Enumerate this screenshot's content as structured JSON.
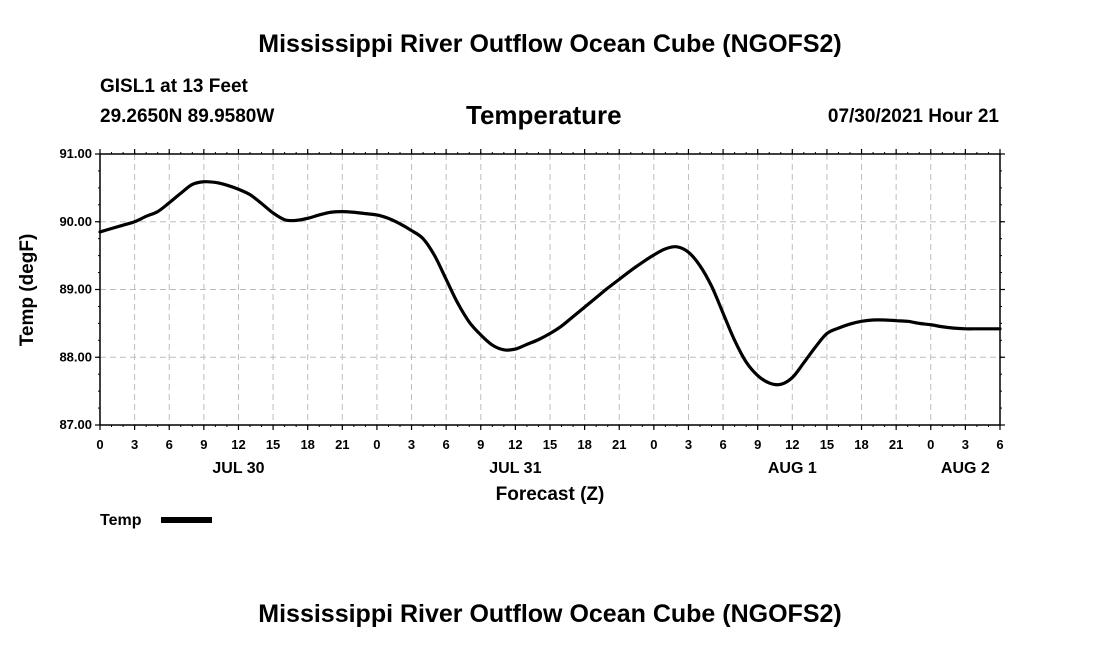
{
  "header": {
    "title": "Mississippi River Outflow Ocean Cube (NGOFS2)",
    "station": "GISL1 at 13 Feet",
    "coords": "29.2650N  89.9580W",
    "datetime": "07/30/2021 Hour 21"
  },
  "footer": {
    "title": "Mississippi River Outflow Ocean Cube (NGOFS2)"
  },
  "chart_data": {
    "type": "line",
    "title": "Temperature",
    "xlabel": "Forecast (Z)",
    "ylabel": "Temp (degF)",
    "ylim": [
      87.0,
      91.0
    ],
    "xlim_hours": [
      0,
      78
    ],
    "grid": true,
    "yticks": [
      "87.00",
      "88.00",
      "89.00",
      "90.00",
      "91.00"
    ],
    "ytick_values": [
      87,
      88,
      89,
      90,
      91
    ],
    "xticks": [
      "0",
      "3",
      "6",
      "9",
      "12",
      "15",
      "18",
      "21",
      "0",
      "3",
      "6",
      "9",
      "12",
      "15",
      "18",
      "21",
      "0",
      "3",
      "6",
      "9",
      "12",
      "15",
      "18",
      "21",
      "0",
      "3",
      "6"
    ],
    "day_labels": [
      {
        "label": "JUL 30",
        "hour": 12
      },
      {
        "label": "JUL 31",
        "hour": 36
      },
      {
        "label": "AUG 1",
        "hour": 60
      },
      {
        "label": "AUG 2",
        "hour": 75
      }
    ],
    "legend": [
      {
        "name": "Temp",
        "color": "#000000"
      }
    ],
    "series": [
      {
        "name": "Temp",
        "x_hours": [
          0,
          1,
          2,
          3,
          4,
          5,
          6,
          7,
          8,
          9,
          10,
          11,
          12,
          13,
          14,
          15,
          16,
          17,
          18,
          19,
          20,
          21,
          22,
          23,
          24,
          25,
          26,
          27,
          28,
          29,
          30,
          31,
          32,
          33,
          34,
          35,
          36,
          37,
          38,
          39,
          40,
          41,
          42,
          43,
          44,
          45,
          46,
          47,
          48,
          49,
          50,
          51,
          52,
          53,
          54,
          55,
          56,
          57,
          58,
          59,
          60,
          61,
          62,
          63,
          64,
          65,
          66,
          67,
          68,
          69,
          70,
          71,
          72,
          73,
          74,
          75,
          76,
          77,
          78
        ],
        "values": [
          89.85,
          89.9,
          89.95,
          90.0,
          90.08,
          90.15,
          90.28,
          90.42,
          90.55,
          90.59,
          90.58,
          90.54,
          90.48,
          90.4,
          90.27,
          90.13,
          90.03,
          90.02,
          90.05,
          90.1,
          90.14,
          90.15,
          90.14,
          90.12,
          90.1,
          90.05,
          89.97,
          89.87,
          89.75,
          89.5,
          89.15,
          88.8,
          88.52,
          88.33,
          88.18,
          88.11,
          88.12,
          88.19,
          88.26,
          88.35,
          88.46,
          88.6,
          88.74,
          88.88,
          89.02,
          89.15,
          89.28,
          89.4,
          89.51,
          89.6,
          89.63,
          89.55,
          89.35,
          89.05,
          88.65,
          88.25,
          87.93,
          87.73,
          87.62,
          87.6,
          87.7,
          87.92,
          88.15,
          88.35,
          88.43,
          88.49,
          88.53,
          88.55,
          88.55,
          88.54,
          88.53,
          88.5,
          88.48,
          88.45,
          88.43,
          88.42,
          88.42,
          88.42,
          88.42
        ]
      }
    ]
  }
}
